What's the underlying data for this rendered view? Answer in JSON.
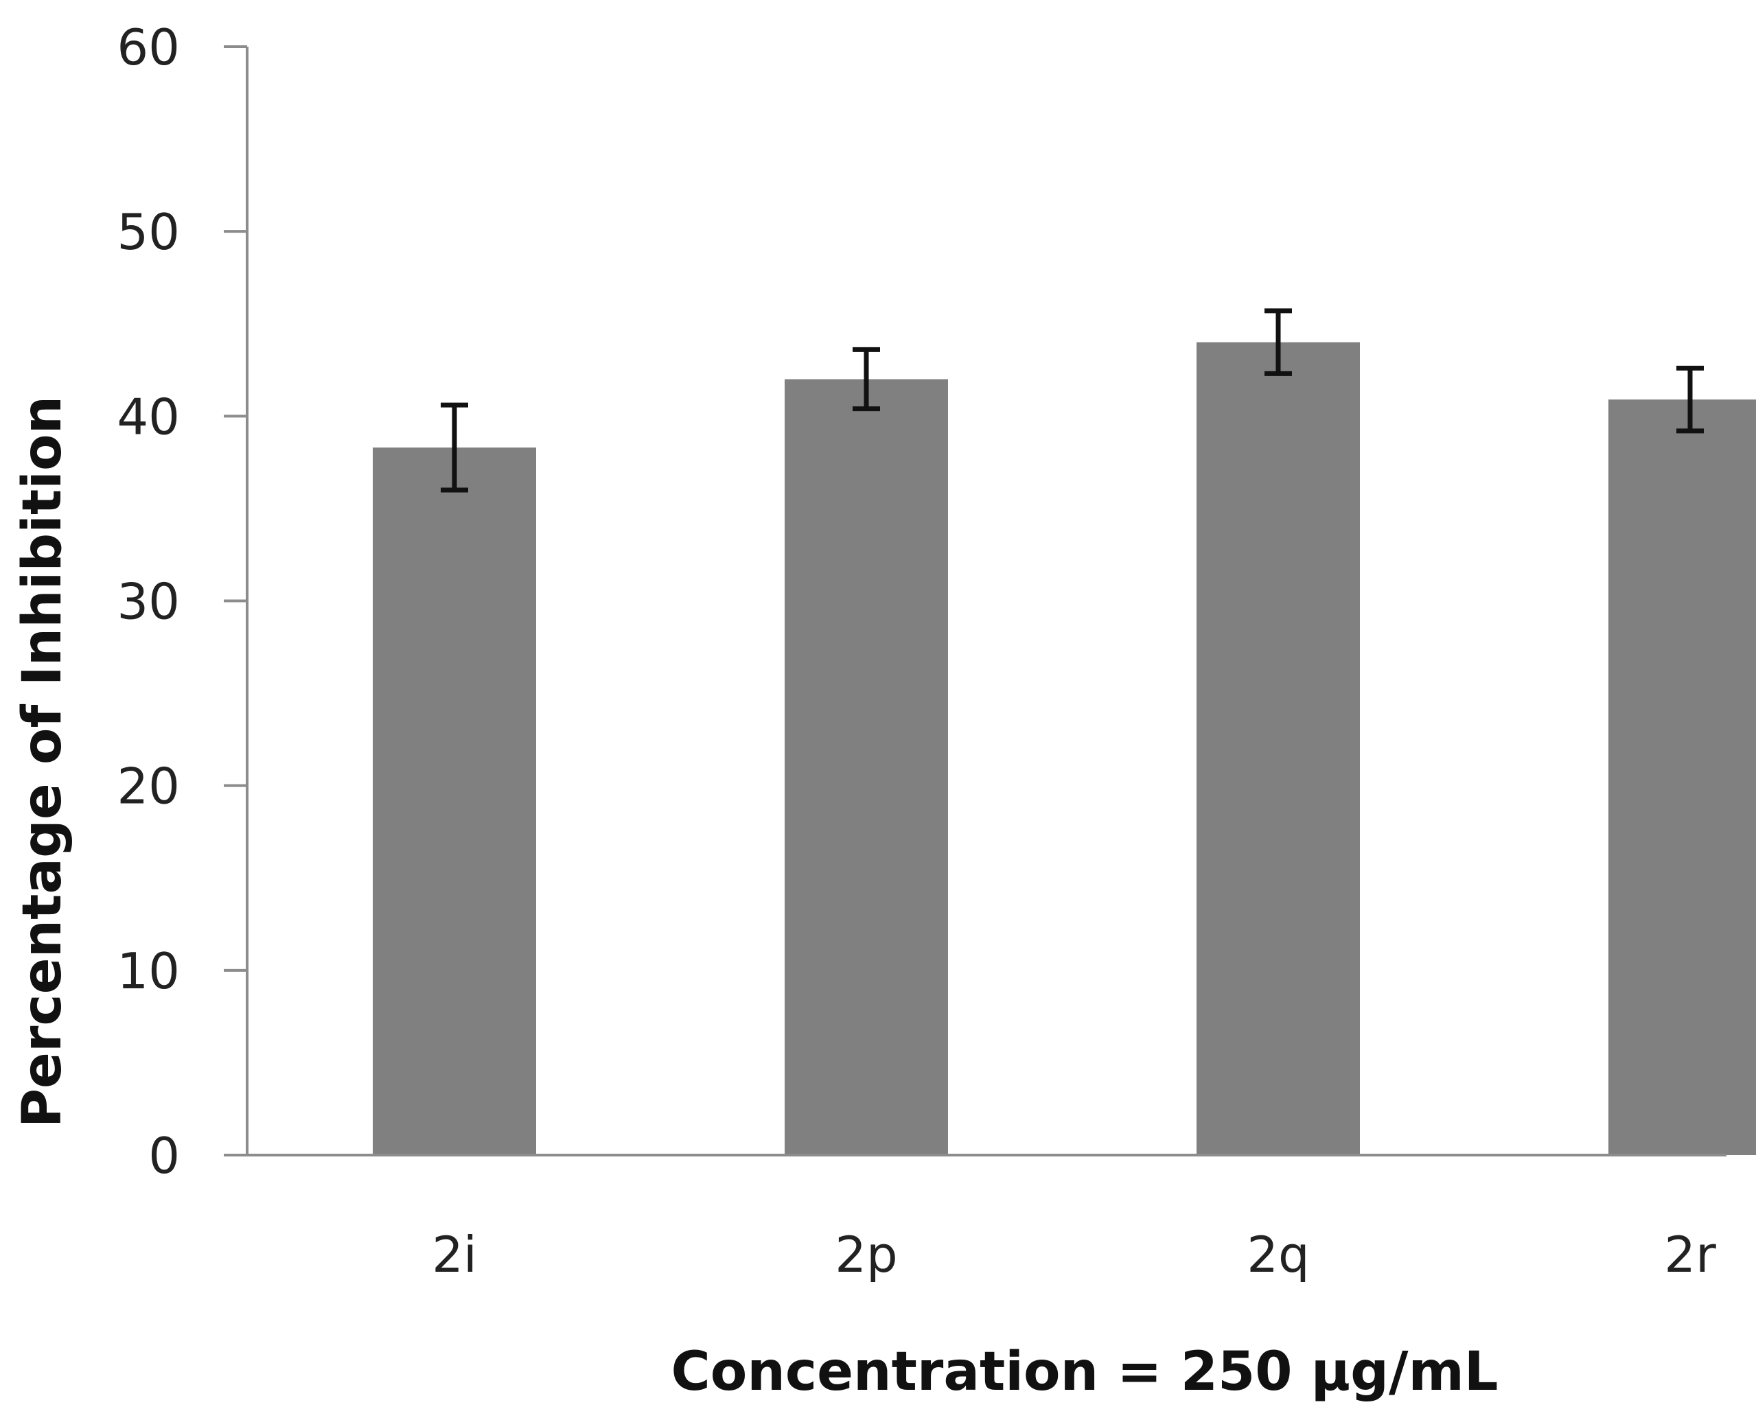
{
  "chart_data": {
    "type": "bar",
    "title": "",
    "xlabel": "Concentration = 250 µg/mL",
    "ylabel": "Percentage of Inhibition",
    "categories": [
      "2i",
      "2p",
      "2q",
      "2r"
    ],
    "values": [
      38.3,
      42.0,
      44.0,
      40.9
    ],
    "errors": [
      2.3,
      1.6,
      1.7,
      1.7
    ],
    "ylim": [
      0,
      60
    ],
    "yticks": [
      "0",
      "10",
      "20",
      "30",
      "40",
      "50",
      "60"
    ],
    "grid": false,
    "legend": "none"
  },
  "colors": {
    "bar": "#808080",
    "error_bar": "#111111",
    "axis": "#8c8c8c",
    "background": "#ffffff"
  }
}
